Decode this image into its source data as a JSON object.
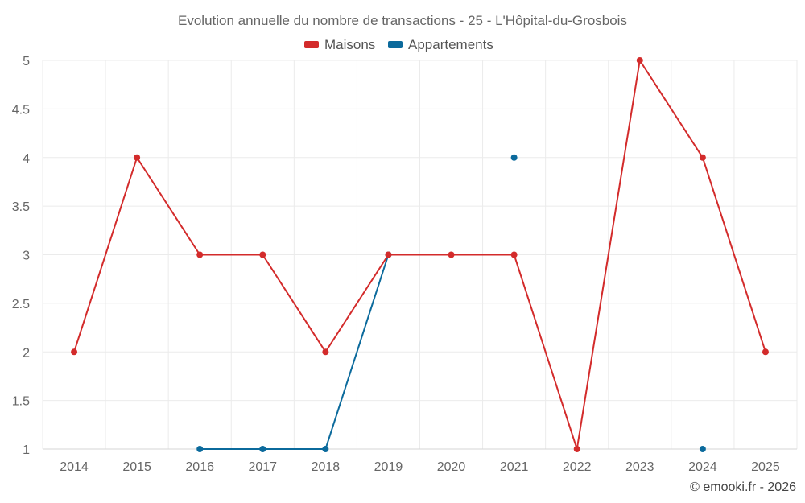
{
  "chart_data": {
    "type": "line",
    "title": "Evolution annuelle du nombre de transactions - 25 - L'Hôpital-du-Grosbois",
    "categories": [
      "2014",
      "2015",
      "2016",
      "2017",
      "2018",
      "2019",
      "2020",
      "2021",
      "2022",
      "2023",
      "2024",
      "2025"
    ],
    "series": [
      {
        "name": "Maisons",
        "color": "#d32b2b",
        "values": [
          2,
          4,
          3,
          3,
          2,
          3,
          3,
          3,
          1,
          5,
          4,
          2
        ]
      },
      {
        "name": "Appartements",
        "color": "#0b6a9c",
        "values": [
          null,
          null,
          1,
          1,
          1,
          3,
          null,
          4,
          null,
          null,
          1,
          null
        ]
      }
    ],
    "ylim": [
      1,
      5
    ],
    "yticks": [
      "1",
      "1.5",
      "2",
      "2.5",
      "3",
      "3.5",
      "4",
      "4.5",
      "5"
    ],
    "grid": true,
    "legend": "top-center"
  },
  "credit": "© emooki.fr - 2026"
}
